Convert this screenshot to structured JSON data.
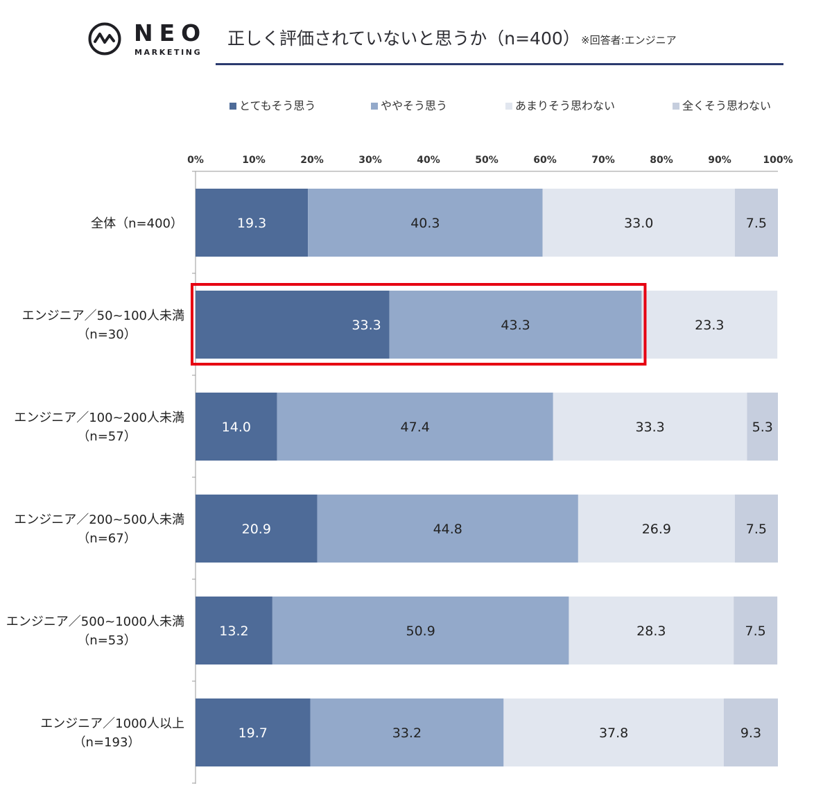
{
  "header": {
    "logo_word": "NEO",
    "logo_sub": "MARKETING",
    "title": "正しく評価されていないと思うか（n=400）",
    "note": "※回答者:エンジニア"
  },
  "colors": {
    "series": [
      "#4e6b98",
      "#93a9ca",
      "#e1e6ef",
      "#c6cede"
    ],
    "highlight": "#e60012",
    "title_rule": "#2b3a6e"
  },
  "chart_data": {
    "type": "bar",
    "orientation": "horizontal",
    "stacked": true,
    "categories": [
      [
        "全体（n=400）"
      ],
      [
        "エンジニア／50~100人未満",
        "（n=30）"
      ],
      [
        "エンジニア／100~200人未満",
        "（n=57）"
      ],
      [
        "エンジニア／200~500人未満",
        "（n=67）"
      ],
      [
        "エンジニア／500~1000人未満",
        "（n=53）"
      ],
      [
        "エンジニア／1000人以上",
        "（n=193）"
      ]
    ],
    "series": [
      {
        "name": "とてもそう思う",
        "values": [
          19.3,
          33.3,
          14.0,
          20.9,
          13.2,
          19.7
        ]
      },
      {
        "name": "ややそう思う",
        "values": [
          40.3,
          43.3,
          47.4,
          44.8,
          50.9,
          33.2
        ]
      },
      {
        "name": "あまりそう思わない",
        "values": [
          33.0,
          23.3,
          33.3,
          26.9,
          28.3,
          37.8
        ]
      },
      {
        "name": "全くそう思わない",
        "values": [
          7.5,
          0,
          5.3,
          7.5,
          7.5,
          9.3
        ]
      }
    ],
    "data_labels": [
      [
        "19.3",
        "40.3",
        "33.0",
        "7.5"
      ],
      [
        "33.3",
        "43.3",
        "23.3",
        ""
      ],
      [
        "14.0",
        "47.4",
        "33.3",
        "5.3"
      ],
      [
        "20.9",
        "44.8",
        "26.9",
        "7.5"
      ],
      [
        "13.2",
        "50.9",
        "28.3",
        "7.5"
      ],
      [
        "19.7",
        "33.2",
        "37.8",
        "9.3"
      ]
    ],
    "x_ticks": [
      "0%",
      "10%",
      "20%",
      "30%",
      "40%",
      "50%",
      "60%",
      "70%",
      "80%",
      "90%",
      "100%"
    ],
    "xlim": [
      0,
      100
    ],
    "legend_position": "top",
    "highlight": {
      "category_index": 1,
      "series_indices": [
        0,
        1
      ]
    }
  }
}
